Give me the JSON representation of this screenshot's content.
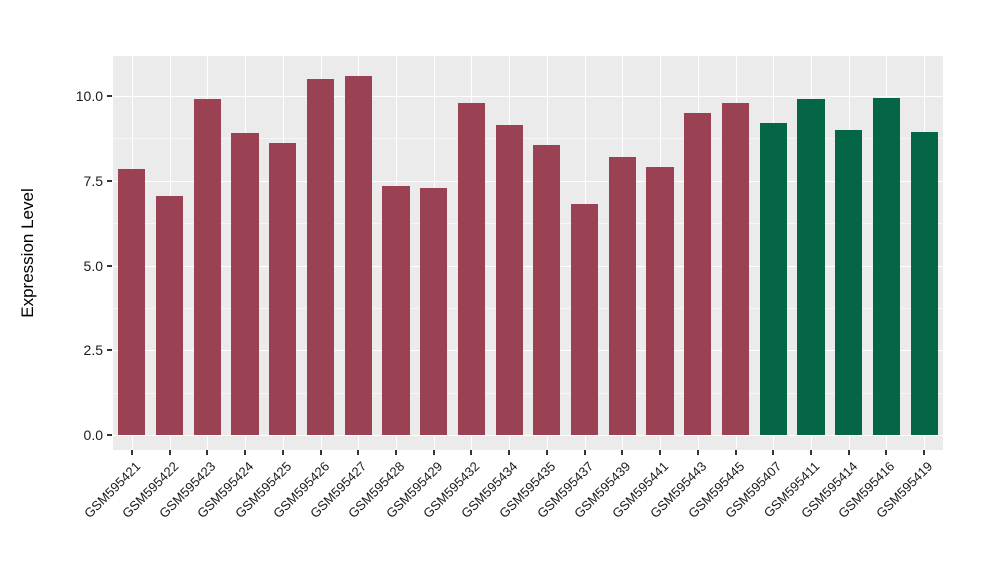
{
  "chart_data": {
    "type": "bar",
    "title": "",
    "xlabel": "",
    "ylabel": "Expression Level",
    "categories": [
      "GSM595421",
      "GSM595422",
      "GSM595423",
      "GSM595424",
      "GSM595425",
      "GSM595426",
      "GSM595427",
      "GSM595428",
      "GSM595429",
      "GSM595432",
      "GSM595434",
      "GSM595435",
      "GSM595437",
      "GSM595439",
      "GSM595441",
      "GSM595443",
      "GSM595445",
      "GSM595407",
      "GSM595411",
      "GSM595414",
      "GSM595416",
      "GSM595419"
    ],
    "values": [
      7.85,
      7.05,
      9.9,
      8.9,
      8.6,
      10.5,
      10.6,
      7.35,
      7.3,
      9.8,
      9.15,
      8.55,
      6.8,
      8.2,
      7.9,
      9.5,
      9.8,
      9.2,
      9.9,
      9.0,
      9.95,
      8.95
    ],
    "bar_colors": [
      "#9A4153",
      "#9A4153",
      "#9A4153",
      "#9A4153",
      "#9A4153",
      "#9A4153",
      "#9A4153",
      "#9A4153",
      "#9A4153",
      "#9A4153",
      "#9A4153",
      "#9A4153",
      "#9A4153",
      "#9A4153",
      "#9A4153",
      "#9A4153",
      "#9A4153",
      "#046647",
      "#046647",
      "#046647",
      "#046647",
      "#046647"
    ],
    "y_ticks": {
      "values": [
        0,
        2.5,
        5,
        7.5,
        10
      ],
      "labels": [
        "0.0",
        "2.5",
        "5.0",
        "7.5",
        "10.0"
      ]
    },
    "y_minor_ticks": [
      1.25,
      3.75,
      6.25,
      8.75
    ],
    "ylim": [
      -0.55,
      11.18
    ],
    "grid": "on",
    "legend": "none",
    "colors": {
      "panel_background": "#EBEBEB",
      "gridline": "#FFFFFF",
      "bar_maroon": "#9A4153",
      "bar_green": "#046647",
      "tick_mark": "#333333",
      "tick_text": "#1A1A1A",
      "axis_title_text": "#000000"
    }
  }
}
